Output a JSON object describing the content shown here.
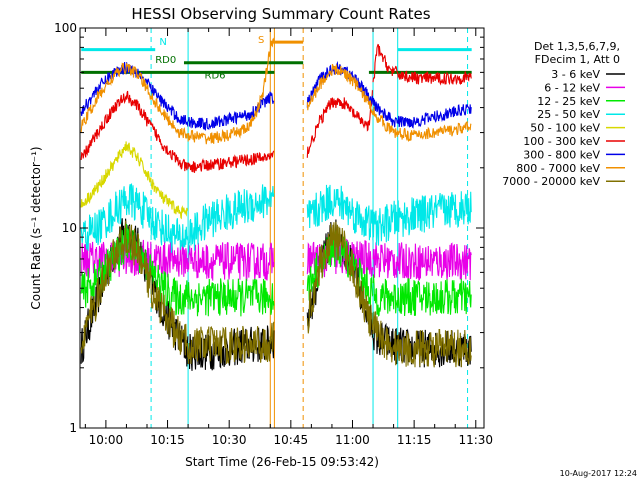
{
  "chart_data": {
    "type": "line",
    "title": "HESSI Observing Summary Count Rates",
    "xlabel": "Start Time (26-Feb-15 09:53:42)",
    "ylabel": "Count Rate (s⁻¹ detector⁻¹)",
    "yscale": "log",
    "ylim": [
      1,
      100
    ],
    "xlim": [
      "09:53:42",
      "11:32:00"
    ],
    "x_tick_labels": [
      "10:00",
      "10:15",
      "10:30",
      "10:45",
      "11:00",
      "11:15",
      "11:30"
    ],
    "y_tick_labels": [
      "1",
      "10",
      "100"
    ],
    "legend": {
      "position": "right",
      "header": [
        "Det 1,3,5,6,7,9,",
        "FDecim 1, Att 0"
      ],
      "entries": [
        {
          "label": "3 - 6 keV",
          "color": "#000000"
        },
        {
          "label": "6 - 12 keV",
          "color": "#e800e8"
        },
        {
          "label": "12 - 25 keV",
          "color": "#00e800"
        },
        {
          "label": "25 - 50 keV",
          "color": "#00e8e8"
        },
        {
          "label": "50 - 100 keV",
          "color": "#d8d800"
        },
        {
          "label": "100 - 300 keV",
          "color": "#e80000"
        },
        {
          "label": "300 - 800 keV",
          "color": "#0000e8"
        },
        {
          "label": "800 - 7000 keV",
          "color": "#f09000"
        },
        {
          "label": "7000 - 20000 keV",
          "color": "#807000"
        }
      ]
    },
    "annotations": [
      {
        "text": "N",
        "color": "#00e8e8"
      },
      {
        "text": "RD0",
        "color": "#007000"
      },
      {
        "text": "RD6",
        "color": "#007000"
      },
      {
        "text": "S",
        "color": "#f09000"
      }
    ],
    "timestamp": "10-Aug-2017 12:24",
    "segments": [
      {
        "start": "09:54",
        "end": "10:20"
      },
      {
        "start": "10:20",
        "end": "10:41"
      },
      {
        "start": "10:49",
        "end": "11:05"
      },
      {
        "start": "11:05",
        "end": "11:29"
      }
    ],
    "vertical_markers": [
      {
        "time": "10:11",
        "color": "#00e8e8",
        "dashed": true
      },
      {
        "time": "10:20",
        "color": "#00e8e8",
        "dashed": false
      },
      {
        "time": "10:40",
        "color": "#f09000",
        "dashed": false
      },
      {
        "time": "10:41",
        "color": "#f09000",
        "dashed": false
      },
      {
        "time": "10:48",
        "color": "#f09000",
        "dashed": true
      },
      {
        "time": "11:05",
        "color": "#00e8e8",
        "dashed": false
      },
      {
        "time": "11:11",
        "color": "#00e8e8",
        "dashed": false
      },
      {
        "time": "11:28",
        "color": "#00e8e8",
        "dashed": true
      }
    ],
    "flags": [
      {
        "name": "N",
        "color": "#00e8e8",
        "y": 78,
        "ranges": [
          [
            "09:54",
            "10:12"
          ],
          [
            "11:11",
            "11:29"
          ]
        ]
      },
      {
        "name": "RD0",
        "color": "#007000",
        "y": 67,
        "ranges": [
          [
            "10:19",
            "10:48"
          ]
        ]
      },
      {
        "name": "RD6",
        "color": "#007000",
        "y": 60,
        "ranges": [
          [
            "09:54",
            "10:20"
          ],
          [
            "10:20",
            "10:41"
          ],
          [
            "11:04",
            "11:29"
          ]
        ]
      },
      {
        "name": "S",
        "color": "#f09000",
        "y": 85,
        "ranges": [
          [
            "10:40",
            "10:48"
          ]
        ]
      }
    ],
    "series": [
      {
        "name": "3 - 6 keV",
        "color": "#000000",
        "points": [
          [
            "09:54",
            2.5
          ],
          [
            "09:58",
            4.5
          ],
          [
            "10:02",
            7.5
          ],
          [
            "10:05",
            10
          ],
          [
            "10:08",
            8
          ],
          [
            "10:11",
            5.5
          ],
          [
            "10:14",
            3.8
          ],
          [
            "10:17",
            3.0
          ],
          [
            "10:19",
            2.6
          ],
          [
            "10:20",
            2.4
          ],
          [
            "10:25",
            2.4
          ],
          [
            "10:30",
            2.5
          ],
          [
            "10:35",
            2.6
          ],
          [
            "10:39",
            2.6
          ],
          [
            "10:49",
            3.5
          ],
          [
            "10:52",
            6
          ],
          [
            "10:55",
            9.5
          ],
          [
            "10:58",
            8
          ],
          [
            "11:01",
            5.5
          ],
          [
            "11:04",
            3.5
          ],
          [
            "11:06",
            2.8
          ],
          [
            "11:10",
            2.6
          ],
          [
            "11:15",
            2.5
          ],
          [
            "11:20",
            2.5
          ],
          [
            "11:25",
            2.5
          ],
          [
            "11:29",
            2.5
          ]
        ]
      },
      {
        "name": "6 - 12 keV",
        "color": "#e800e8",
        "points": [
          [
            "09:54",
            7
          ],
          [
            "09:58",
            7
          ],
          [
            "10:02",
            7
          ],
          [
            "10:06",
            7.2
          ],
          [
            "10:10",
            7
          ],
          [
            "10:14",
            7
          ],
          [
            "10:18",
            7
          ],
          [
            "10:20",
            7
          ],
          [
            "10:24",
            6.8
          ],
          [
            "10:30",
            6.8
          ],
          [
            "10:36",
            6.8
          ],
          [
            "10:39",
            6.8
          ],
          [
            "10:49",
            7
          ],
          [
            "10:54",
            7
          ],
          [
            "10:58",
            7.2
          ],
          [
            "11:02",
            7
          ],
          [
            "11:05",
            7
          ],
          [
            "11:10",
            6.8
          ],
          [
            "11:15",
            6.8
          ],
          [
            "11:20",
            6.8
          ],
          [
            "11:25",
            6.8
          ],
          [
            "11:29",
            6.8
          ]
        ]
      },
      {
        "name": "12 - 25 keV",
        "color": "#00e800",
        "points": [
          [
            "09:54",
            4.8
          ],
          [
            "09:58",
            5.5
          ],
          [
            "10:02",
            7
          ],
          [
            "10:05",
            8.5
          ],
          [
            "10:08",
            7.5
          ],
          [
            "10:11",
            6
          ],
          [
            "10:14",
            5
          ],
          [
            "10:17",
            4.5
          ],
          [
            "10:20",
            4.5
          ],
          [
            "10:25",
            4.5
          ],
          [
            "10:30",
            4.5
          ],
          [
            "10:35",
            4.5
          ],
          [
            "10:39",
            4.5
          ],
          [
            "10:49",
            5
          ],
          [
            "10:52",
            6.5
          ],
          [
            "10:55",
            8
          ],
          [
            "10:58",
            7.5
          ],
          [
            "11:01",
            6
          ],
          [
            "11:04",
            5
          ],
          [
            "11:06",
            4.5
          ],
          [
            "11:10",
            4.5
          ],
          [
            "11:15",
            4.5
          ],
          [
            "11:20",
            4.5
          ],
          [
            "11:25",
            4.5
          ],
          [
            "11:29",
            4.5
          ]
        ]
      },
      {
        "name": "25 - 50 keV",
        "color": "#00e8e8",
        "points": [
          [
            "09:54",
            9
          ],
          [
            "09:58",
            10
          ],
          [
            "10:02",
            12
          ],
          [
            "10:05",
            14
          ],
          [
            "10:08",
            13
          ],
          [
            "10:11",
            11
          ],
          [
            "10:14",
            10
          ],
          [
            "10:17",
            9
          ],
          [
            "10:20",
            9
          ],
          [
            "10:25",
            11
          ],
          [
            "10:30",
            12
          ],
          [
            "10:35",
            13
          ],
          [
            "10:40",
            14
          ],
          [
            "10:49",
            11
          ],
          [
            "10:52",
            12.5
          ],
          [
            "10:55",
            14
          ],
          [
            "10:58",
            13
          ],
          [
            "11:01",
            11.5
          ],
          [
            "11:04",
            10.5
          ],
          [
            "11:06",
            10
          ],
          [
            "11:10",
            11
          ],
          [
            "11:15",
            11.5
          ],
          [
            "11:20",
            12
          ],
          [
            "11:25",
            12.5
          ],
          [
            "11:29",
            13
          ]
        ]
      },
      {
        "name": "50 - 100 keV",
        "color": "#d8d800",
        "points": [
          [
            "09:54",
            13
          ],
          [
            "09:58",
            16
          ],
          [
            "10:02",
            21
          ],
          [
            "10:05",
            26
          ],
          [
            "10:08",
            22
          ],
          [
            "10:11",
            17
          ],
          [
            "10:14",
            14
          ],
          [
            "10:18",
            12
          ],
          [
            "10:20",
            12
          ]
        ]
      },
      {
        "name": "100 - 300 keV",
        "color": "#e80000",
        "points": [
          [
            "09:54",
            22
          ],
          [
            "09:58",
            30
          ],
          [
            "10:02",
            40
          ],
          [
            "10:05",
            46
          ],
          [
            "10:08",
            40
          ],
          [
            "10:11",
            32
          ],
          [
            "10:14",
            26
          ],
          [
            "10:18",
            21
          ],
          [
            "10:20",
            20
          ],
          [
            "10:49",
            24
          ],
          [
            "10:52",
            34
          ],
          [
            "10:55",
            43
          ],
          [
            "10:58",
            42
          ],
          [
            "11:01",
            36
          ],
          [
            "11:04",
            32
          ],
          [
            "11:06",
            80
          ],
          [
            "11:09",
            62
          ],
          [
            "11:12",
            58
          ],
          [
            "11:16",
            56
          ],
          [
            "11:20",
            56
          ],
          [
            "11:25",
            56
          ],
          [
            "11:29",
            57
          ]
        ]
      },
      {
        "name": "300 - 800 keV",
        "color": "#0000e8",
        "points": [
          [
            "09:54",
            38
          ],
          [
            "09:58",
            50
          ],
          [
            "10:02",
            60
          ],
          [
            "10:05",
            64
          ],
          [
            "10:08",
            60
          ],
          [
            "10:11",
            50
          ],
          [
            "10:14",
            42
          ],
          [
            "10:18",
            35
          ],
          [
            "10:20",
            34
          ],
          [
            "10:25",
            33
          ],
          [
            "10:30",
            35
          ],
          [
            "10:35",
            37
          ],
          [
            "10:40",
            45
          ],
          [
            "10:49",
            42
          ],
          [
            "10:52",
            55
          ],
          [
            "10:55",
            63
          ],
          [
            "10:58",
            62
          ],
          [
            "11:01",
            55
          ],
          [
            "11:04",
            45
          ],
          [
            "11:06",
            40
          ],
          [
            "11:10",
            34
          ],
          [
            "11:15",
            34
          ],
          [
            "11:20",
            36
          ],
          [
            "11:25",
            38
          ],
          [
            "11:29",
            40
          ]
        ]
      },
      {
        "name": "800 - 7000 keV",
        "color": "#f09000",
        "points": [
          [
            "09:54",
            32
          ],
          [
            "09:58",
            45
          ],
          [
            "10:02",
            58
          ],
          [
            "10:05",
            64
          ],
          [
            "10:08",
            58
          ],
          [
            "10:11",
            46
          ],
          [
            "10:14",
            37
          ],
          [
            "10:18",
            30
          ],
          [
            "10:20",
            29
          ],
          [
            "10:25",
            28
          ],
          [
            "10:30",
            29
          ],
          [
            "10:35",
            32
          ],
          [
            "10:38",
            45
          ],
          [
            "10:40",
            78
          ],
          [
            "10:41",
            95
          ],
          [
            "10:49",
            40
          ],
          [
            "10:52",
            52
          ],
          [
            "10:55",
            62
          ],
          [
            "10:58",
            60
          ],
          [
            "11:01",
            52
          ],
          [
            "11:04",
            42
          ],
          [
            "11:06",
            36
          ],
          [
            "11:10",
            30
          ],
          [
            "11:15",
            29
          ],
          [
            "11:20",
            30
          ],
          [
            "11:25",
            31
          ],
          [
            "11:29",
            32
          ]
        ]
      },
      {
        "name": "7000 - 20000 keV",
        "color": "#807000",
        "points": [
          [
            "09:54",
            2.8
          ],
          [
            "09:58",
            4.5
          ],
          [
            "10:02",
            7.5
          ],
          [
            "10:05",
            9
          ],
          [
            "10:08",
            7.5
          ],
          [
            "10:11",
            5
          ],
          [
            "10:14",
            3.8
          ],
          [
            "10:17",
            3.0
          ],
          [
            "10:20",
            2.6
          ],
          [
            "10:25",
            2.6
          ],
          [
            "10:30",
            2.6
          ],
          [
            "10:35",
            2.6
          ],
          [
            "10:39",
            2.6
          ],
          [
            "10:49",
            3.5
          ],
          [
            "10:52",
            6.5
          ],
          [
            "10:55",
            9
          ],
          [
            "10:58",
            8
          ],
          [
            "11:01",
            5.5
          ],
          [
            "11:04",
            3.5
          ],
          [
            "11:06",
            3
          ],
          [
            "11:10",
            2.5
          ],
          [
            "11:15",
            2.5
          ],
          [
            "11:20",
            2.5
          ],
          [
            "11:25",
            2.5
          ],
          [
            "11:29",
            2.5
          ]
        ]
      }
    ]
  }
}
